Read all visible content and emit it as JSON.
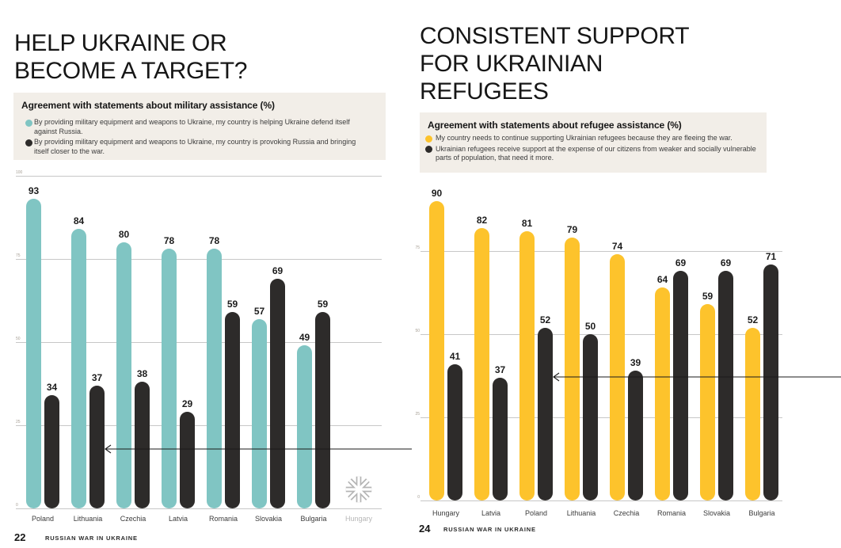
{
  "colors": {
    "teal": "#80c5c3",
    "yellow": "#fdc32c",
    "dark": "#2d2b2a",
    "legend_background": "#f2eee8",
    "gridline": "#c7c7c7",
    "tick_label": "#a69e94",
    "muted_label": "#b6b6b6",
    "arrow": "#1a1a1a",
    "title_text": "#161616"
  },
  "pages": [
    {
      "page_number": "22",
      "footer_text": "RUSSIAN WAR IN UKRAINE",
      "title_lines": [
        "HELP UKRAINE OR",
        "BECOME A TARGET?"
      ],
      "legend": {
        "heading": "Agreement with statements about military assistance (%)",
        "items": [
          {
            "color": "#80c5c3",
            "lines": [
              "By providing military equipment and weapons to Ukraine, my country is helping Ukraine defend itself",
              "against Russia."
            ]
          },
          {
            "color": "#2d2b2a",
            "lines": [
              "By providing military equipment and weapons to Ukraine, my country is provoking Russia and bringing",
              "itself closer to the war."
            ]
          }
        ]
      },
      "chart_data": {
        "type": "bar",
        "title": "Agreement with statements about military assistance (%)",
        "categories": [
          "Poland",
          "Lithuania",
          "Czechia",
          "Latvia",
          "Romania",
          "Slovakia",
          "Bulgaria",
          "Hungary"
        ],
        "series": [
          {
            "name": "By providing military equipment and weapons to Ukraine, my country is helping Ukraine defend itself against Russia.",
            "color": "#80c5c3",
            "values": [
              93,
              84,
              80,
              78,
              78,
              57,
              49,
              null
            ]
          },
          {
            "name": "By providing military equipment and weapons to Ukraine, my country is provoking Russia and bringing itself closer to the war.",
            "color": "#2d2b2a",
            "values": [
              34,
              37,
              38,
              29,
              59,
              69,
              59,
              null
            ]
          }
        ],
        "ylim": [
          0,
          100
        ],
        "yticks": [
          100,
          75,
          50,
          25,
          0
        ],
        "grid": true,
        "legend_position": "top",
        "no_data": {
          "category": "Hungary",
          "symbol": "asterisk"
        },
        "annotations": [
          {
            "type": "arrow",
            "direction": "left",
            "points_at_category": "Lithuania"
          }
        ]
      }
    },
    {
      "page_number": "24",
      "footer_text": "RUSSIAN WAR IN UKRAINE",
      "title_lines": [
        "CONSISTENT SUPPORT",
        "FOR UKRAINIAN",
        "REFUGEES"
      ],
      "legend": {
        "heading": "Agreement with statements about refugee assistance (%)",
        "items": [
          {
            "color": "#fdc32c",
            "lines": [
              "My country needs to continue supporting Ukrainian refugees because they are fleeing the war."
            ]
          },
          {
            "color": "#2d2b2a",
            "lines": [
              "Ukrainian refugees receive support at the expense of our citizens from weaker and socially vulnerable",
              "parts of population, that need it more."
            ]
          }
        ]
      },
      "chart_data": {
        "type": "bar",
        "title": "Agreement with statements about refugee assistance (%)",
        "categories": [
          "Hungary",
          "Latvia",
          "Poland",
          "Lithuania",
          "Czechia",
          "Romania",
          "Slovakia",
          "Bulgaria"
        ],
        "series": [
          {
            "name": "My country needs to continue supporting Ukrainian refugees because they are fleeing the war.",
            "color": "#fdc32c",
            "values": [
              90,
              82,
              81,
              79,
              74,
              64,
              59,
              52
            ]
          },
          {
            "name": "Ukrainian refugees receive support at the expense of our citizens from weaker and socially vulnerable parts of population, that need it more.",
            "color": "#2d2b2a",
            "values": [
              41,
              37,
              52,
              50,
              39,
              69,
              69,
              71
            ]
          }
        ],
        "ylim": [
          0,
          100
        ],
        "yticks": [
          75,
          50,
          25,
          0
        ],
        "grid": true,
        "legend_position": "top",
        "annotations": [
          {
            "type": "arrow",
            "direction": "left",
            "points_at_category": "Poland"
          }
        ]
      }
    }
  ]
}
